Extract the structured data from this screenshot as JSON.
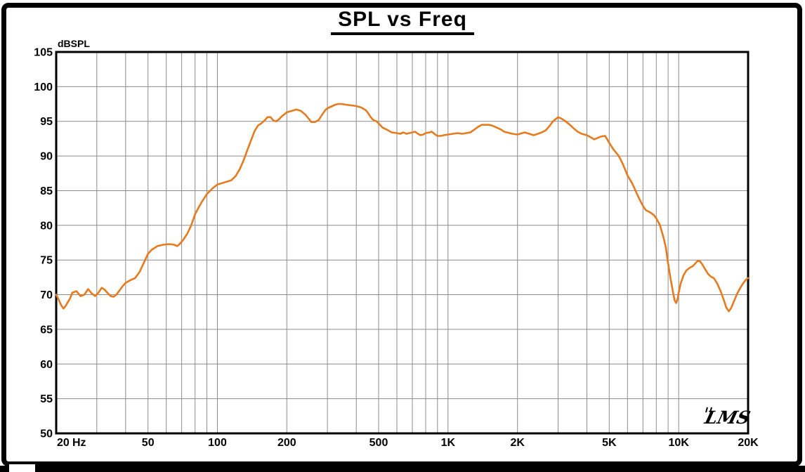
{
  "frame": {
    "background": "#FFFFFF",
    "border_color": "#000000"
  },
  "chart_data": {
    "type": "line",
    "title": "SPL vs Freq",
    "ylabel": "dBSPL",
    "xlabel": "Hz",
    "x_unit": "Hz",
    "x_scale": "log",
    "xlim": [
      20,
      20000
    ],
    "ylim": [
      50,
      105
    ],
    "grid": true,
    "legend": "none",
    "line_color": "#E87A1E",
    "grid_color": "#8C8C8C",
    "axis_color": "#000000",
    "watermark": "LMS",
    "y_ticks": [
      105,
      100,
      95,
      90,
      85,
      80,
      75,
      70,
      65,
      60,
      55,
      50
    ],
    "x_ticks": [
      {
        "value": 20,
        "label": "20"
      },
      {
        "value": 50,
        "label": "50"
      },
      {
        "value": 100,
        "label": "100"
      },
      {
        "value": 200,
        "label": "200"
      },
      {
        "value": 500,
        "label": "500"
      },
      {
        "value": 1000,
        "label": "1K"
      },
      {
        "value": 2000,
        "label": "2K"
      },
      {
        "value": 5000,
        "label": "5K"
      },
      {
        "value": 10000,
        "label": "10K"
      },
      {
        "value": 20000,
        "label": "20K"
      }
    ],
    "x_gridlines": [
      30,
      40,
      50,
      60,
      70,
      80,
      90,
      100,
      200,
      300,
      400,
      500,
      600,
      700,
      800,
      900,
      1000,
      2000,
      3000,
      4000,
      5000,
      6000,
      7000,
      8000,
      9000,
      10000
    ],
    "series": [
      {
        "name": "SPL",
        "points": [
          [
            20,
            70.0
          ],
          [
            20.5,
            69.3
          ],
          [
            21,
            68.5
          ],
          [
            21.5,
            68.0
          ],
          [
            22,
            68.4
          ],
          [
            23,
            69.5
          ],
          [
            23.5,
            70.3
          ],
          [
            24.5,
            70.5
          ],
          [
            25.5,
            69.8
          ],
          [
            26.5,
            70.0
          ],
          [
            27.5,
            70.8
          ],
          [
            28.5,
            70.2
          ],
          [
            29.5,
            69.8
          ],
          [
            30.5,
            70.3
          ],
          [
            31.5,
            71.0
          ],
          [
            32.5,
            70.7
          ],
          [
            33.5,
            70.2
          ],
          [
            34.5,
            69.8
          ],
          [
            35.5,
            69.7
          ],
          [
            36.5,
            70.0
          ],
          [
            38,
            70.8
          ],
          [
            39,
            71.3
          ],
          [
            40,
            71.7
          ],
          [
            42,
            72.1
          ],
          [
            44,
            72.4
          ],
          [
            46,
            73.3
          ],
          [
            48,
            74.6
          ],
          [
            50,
            75.9
          ],
          [
            52,
            76.5
          ],
          [
            55,
            77.0
          ],
          [
            58,
            77.2
          ],
          [
            62,
            77.3
          ],
          [
            65,
            77.2
          ],
          [
            67,
            77.0
          ],
          [
            69,
            77.4
          ],
          [
            71,
            77.9
          ],
          [
            74,
            78.8
          ],
          [
            77,
            80.0
          ],
          [
            80,
            81.6
          ],
          [
            83,
            82.6
          ],
          [
            86,
            83.5
          ],
          [
            90,
            84.5
          ],
          [
            95,
            85.3
          ],
          [
            100,
            85.9
          ],
          [
            105,
            86.1
          ],
          [
            110,
            86.3
          ],
          [
            115,
            86.5
          ],
          [
            120,
            87.1
          ],
          [
            125,
            88.1
          ],
          [
            130,
            89.4
          ],
          [
            135,
            90.9
          ],
          [
            140,
            92.3
          ],
          [
            145,
            93.6
          ],
          [
            150,
            94.4
          ],
          [
            155,
            94.7
          ],
          [
            160,
            95.1
          ],
          [
            165,
            95.6
          ],
          [
            170,
            95.6
          ],
          [
            175,
            95.1
          ],
          [
            180,
            95.0
          ],
          [
            185,
            95.3
          ],
          [
            190,
            95.7
          ],
          [
            195,
            96.0
          ],
          [
            200,
            96.3
          ],
          [
            210,
            96.5
          ],
          [
            220,
            96.7
          ],
          [
            230,
            96.5
          ],
          [
            240,
            96.0
          ],
          [
            250,
            95.3
          ],
          [
            255,
            94.9
          ],
          [
            265,
            94.9
          ],
          [
            275,
            95.2
          ],
          [
            285,
            96.0
          ],
          [
            295,
            96.7
          ],
          [
            305,
            97.0
          ],
          [
            315,
            97.2
          ],
          [
            325,
            97.4
          ],
          [
            335,
            97.5
          ],
          [
            345,
            97.5
          ],
          [
            360,
            97.4
          ],
          [
            380,
            97.3
          ],
          [
            400,
            97.2
          ],
          [
            420,
            97.0
          ],
          [
            440,
            96.6
          ],
          [
            450,
            96.2
          ],
          [
            460,
            95.7
          ],
          [
            470,
            95.3
          ],
          [
            480,
            95.1
          ],
          [
            490,
            95.0
          ],
          [
            500,
            94.7
          ],
          [
            520,
            94.1
          ],
          [
            550,
            93.7
          ],
          [
            570,
            93.4
          ],
          [
            600,
            93.3
          ],
          [
            620,
            93.2
          ],
          [
            640,
            93.4
          ],
          [
            660,
            93.2
          ],
          [
            680,
            93.3
          ],
          [
            700,
            93.4
          ],
          [
            720,
            93.5
          ],
          [
            740,
            93.2
          ],
          [
            760,
            93.0
          ],
          [
            780,
            93.1
          ],
          [
            800,
            93.3
          ],
          [
            830,
            93.4
          ],
          [
            850,
            93.5
          ],
          [
            880,
            93.1
          ],
          [
            900,
            92.9
          ],
          [
            930,
            92.9
          ],
          [
            960,
            93.0
          ],
          [
            1000,
            93.1
          ],
          [
            1050,
            93.2
          ],
          [
            1100,
            93.3
          ],
          [
            1150,
            93.2
          ],
          [
            1200,
            93.3
          ],
          [
            1250,
            93.4
          ],
          [
            1300,
            93.8
          ],
          [
            1350,
            94.2
          ],
          [
            1400,
            94.5
          ],
          [
            1450,
            94.5
          ],
          [
            1500,
            94.5
          ],
          [
            1550,
            94.4
          ],
          [
            1600,
            94.2
          ],
          [
            1700,
            93.8
          ],
          [
            1750,
            93.5
          ],
          [
            1800,
            93.4
          ],
          [
            1900,
            93.2
          ],
          [
            2000,
            93.1
          ],
          [
            2100,
            93.3
          ],
          [
            2150,
            93.4
          ],
          [
            2250,
            93.2
          ],
          [
            2350,
            93.0
          ],
          [
            2450,
            93.2
          ],
          [
            2550,
            93.4
          ],
          [
            2650,
            93.7
          ],
          [
            2750,
            94.3
          ],
          [
            2850,
            95.0
          ],
          [
            2950,
            95.4
          ],
          [
            3000,
            95.6
          ],
          [
            3100,
            95.4
          ],
          [
            3200,
            95.1
          ],
          [
            3350,
            94.6
          ],
          [
            3500,
            94.0
          ],
          [
            3650,
            93.5
          ],
          [
            3800,
            93.2
          ],
          [
            4000,
            93.0
          ],
          [
            4150,
            92.7
          ],
          [
            4300,
            92.4
          ],
          [
            4450,
            92.6
          ],
          [
            4600,
            92.8
          ],
          [
            4800,
            92.9
          ],
          [
            5000,
            91.9
          ],
          [
            5200,
            91.0
          ],
          [
            5500,
            90.0
          ],
          [
            5700,
            89.0
          ],
          [
            6000,
            87.2
          ],
          [
            6300,
            86.0
          ],
          [
            6600,
            84.5
          ],
          [
            6800,
            83.6
          ],
          [
            7000,
            82.8
          ],
          [
            7200,
            82.2
          ],
          [
            7500,
            81.9
          ],
          [
            7800,
            81.5
          ],
          [
            8000,
            81.0
          ],
          [
            8300,
            80.0
          ],
          [
            8600,
            78.2
          ],
          [
            8800,
            76.8
          ],
          [
            9000,
            74.5
          ],
          [
            9200,
            72.5
          ],
          [
            9400,
            70.8
          ],
          [
            9600,
            69.2
          ],
          [
            9750,
            68.8
          ],
          [
            9900,
            69.4
          ],
          [
            10000,
            70.3
          ],
          [
            10200,
            71.6
          ],
          [
            10500,
            72.8
          ],
          [
            10800,
            73.5
          ],
          [
            11200,
            73.9
          ],
          [
            11500,
            74.1
          ],
          [
            11800,
            74.5
          ],
          [
            12100,
            74.9
          ],
          [
            12400,
            74.8
          ],
          [
            12700,
            74.3
          ],
          [
            13000,
            73.7
          ],
          [
            13400,
            73.0
          ],
          [
            13800,
            72.6
          ],
          [
            14200,
            72.4
          ],
          [
            14700,
            71.6
          ],
          [
            15200,
            70.5
          ],
          [
            15700,
            69.2
          ],
          [
            16100,
            68.1
          ],
          [
            16500,
            67.6
          ],
          [
            16900,
            68.1
          ],
          [
            17400,
            69.1
          ],
          [
            17900,
            70.1
          ],
          [
            18500,
            71.0
          ],
          [
            19000,
            71.6
          ],
          [
            19500,
            72.1
          ],
          [
            20000,
            72.4
          ]
        ]
      }
    ]
  }
}
